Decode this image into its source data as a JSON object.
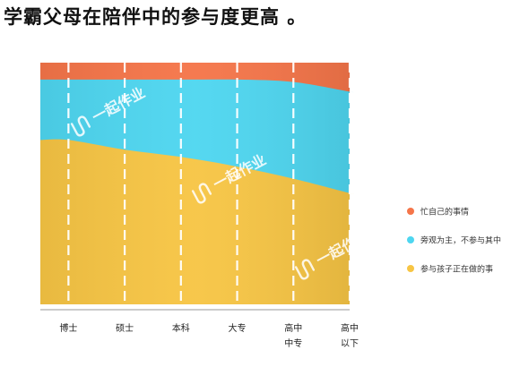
{
  "title": "学霸父母在陪伴中的参与度更高 。",
  "watermark": "一起作业",
  "chart_data": {
    "type": "area",
    "stacked": true,
    "normalized": true,
    "categories": [
      [
        "博士"
      ],
      [
        "硕士"
      ],
      [
        "本科"
      ],
      [
        "大专"
      ],
      [
        "高中",
        "中专"
      ],
      [
        "高中",
        "以下"
      ]
    ],
    "ylim": [
      0,
      100
    ],
    "series": [
      {
        "name": "参与孩子正在做的事",
        "color": "#F7C544",
        "values": [
          68,
          64,
          61,
          57,
          52,
          46
        ]
      },
      {
        "name": "旁观为主，不参与其中",
        "color": "#4ED6F0",
        "values": [
          25,
          29,
          32,
          36,
          40,
          42
        ]
      },
      {
        "name": "忙自己的事情",
        "color": "#F57549",
        "values": [
          7,
          7,
          7,
          7,
          8,
          12
        ]
      }
    ],
    "legend_position": "right"
  }
}
